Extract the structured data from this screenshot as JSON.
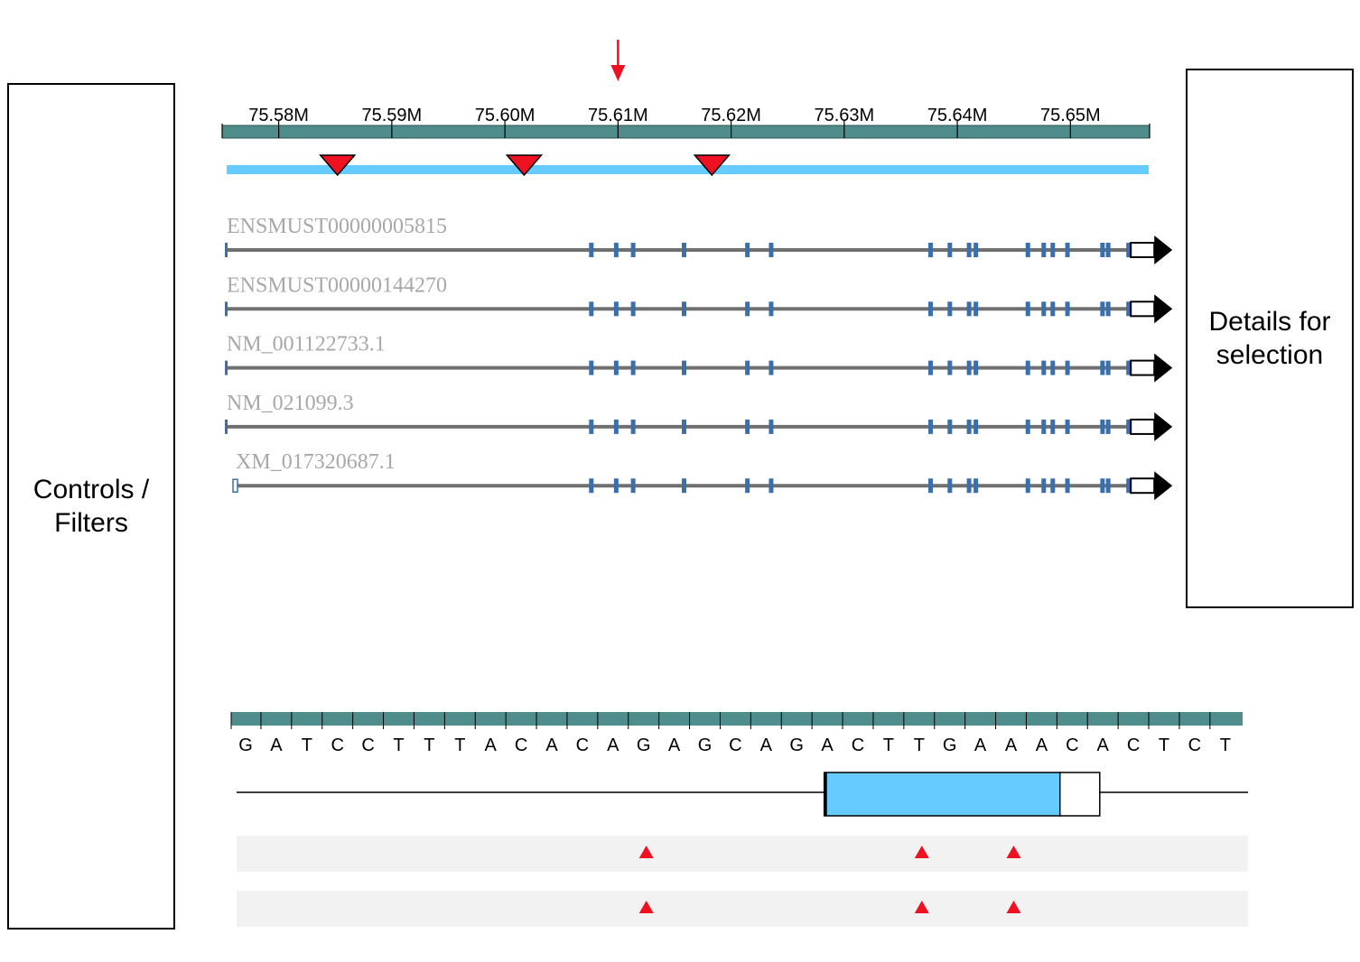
{
  "left_panel": {
    "label": "Controls /\nFilters"
  },
  "right_panel": {
    "label": "Details for\nselection"
  },
  "colors": {
    "ruler": "#4f8c8c",
    "selection_bar": "#66ccff",
    "variant": "#ee1122",
    "exon": "#3a6fae",
    "intron": "#707070",
    "zoom_box": "#66ccff",
    "track_bg": "#f2f2f2"
  },
  "overview": {
    "ticks": [
      "75.58M",
      "75.59M",
      "75.60M",
      "75.61M",
      "75.62M",
      "75.63M",
      "75.64M",
      "75.65M"
    ],
    "tick_values": [
      75.58,
      75.59,
      75.6,
      75.61,
      75.62,
      75.63,
      75.64,
      75.65
    ],
    "range": [
      75.575,
      75.657
    ],
    "cursor_position": 75.61,
    "variant_positions": [
      75.5852,
      75.6017,
      75.6183
    ]
  },
  "transcripts": [
    {
      "id": "ENSMUST00000005815",
      "start": 75.5754
    },
    {
      "id": "ENSMUST00000144270",
      "start": 75.5754
    },
    {
      "id": "NM_001122733.1",
      "start": 75.5754
    },
    {
      "id": "NM_021099.3",
      "start": 75.5754
    },
    {
      "id": "XM_017320687.1",
      "start": 75.5762
    }
  ],
  "exons": [
    75.6076,
    75.6098,
    75.6113,
    75.6158,
    75.6214,
    75.6235,
    75.6376,
    75.6393,
    75.641,
    75.6416,
    75.6462,
    75.6476,
    75.6484,
    75.6497,
    75.6528,
    75.6533
  ],
  "transcript_end": 75.6555,
  "sequence": {
    "bases": [
      "G",
      "A",
      "T",
      "C",
      "C",
      "T",
      "T",
      "T",
      "A",
      "C",
      "A",
      "C",
      "A",
      "G",
      "A",
      "G",
      "C",
      "A",
      "G",
      "A",
      "C",
      "T",
      "T",
      "G",
      "A",
      "A",
      "A",
      "C",
      "A",
      "C",
      "T",
      "C",
      "T"
    ],
    "variant_base_indices": [
      13,
      22,
      25
    ],
    "cds_start_index": 18.9,
    "cds_end_index": 26.6,
    "utr_end_index": 27.9,
    "variant_track_count": 2
  }
}
